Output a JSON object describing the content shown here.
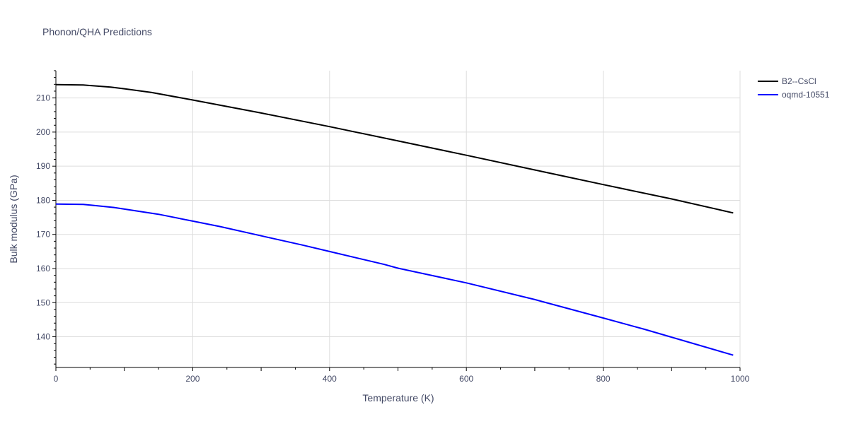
{
  "chart_data": {
    "type": "line",
    "title": "Phonon/QHA Predictions",
    "xlabel": "Temperature (K)",
    "ylabel": "Bulk modulus (GPa)",
    "xlim": [
      0,
      1000
    ],
    "ylim": [
      131,
      218
    ],
    "xticks": [
      0,
      200,
      400,
      600,
      800,
      1000
    ],
    "yticks": [
      140,
      150,
      160,
      170,
      180,
      190,
      200,
      210
    ],
    "grid": true,
    "legend_position": "top-right",
    "series": [
      {
        "name": "B2--CsCl",
        "color": "#000000",
        "x": [
          0,
          40,
          80,
          100,
          140,
          200,
          300,
          400,
          500,
          600,
          700,
          800,
          900,
          990
        ],
        "y": [
          213.9,
          213.8,
          213.2,
          212.7,
          211.6,
          209.4,
          205.6,
          201.6,
          197.4,
          193.2,
          188.9,
          184.6,
          180.4,
          176.3
        ]
      },
      {
        "name": "oqmd-10551",
        "color": "#0000ff",
        "x": [
          0,
          40,
          85,
          150,
          200,
          240,
          300,
          360,
          400,
          480,
          500,
          600,
          700,
          800,
          860,
          990
        ],
        "y": [
          178.9,
          178.8,
          177.9,
          175.9,
          173.9,
          172.3,
          169.6,
          166.9,
          165.0,
          161.2,
          160.1,
          155.8,
          150.9,
          145.5,
          142.2,
          134.6
        ]
      }
    ]
  }
}
